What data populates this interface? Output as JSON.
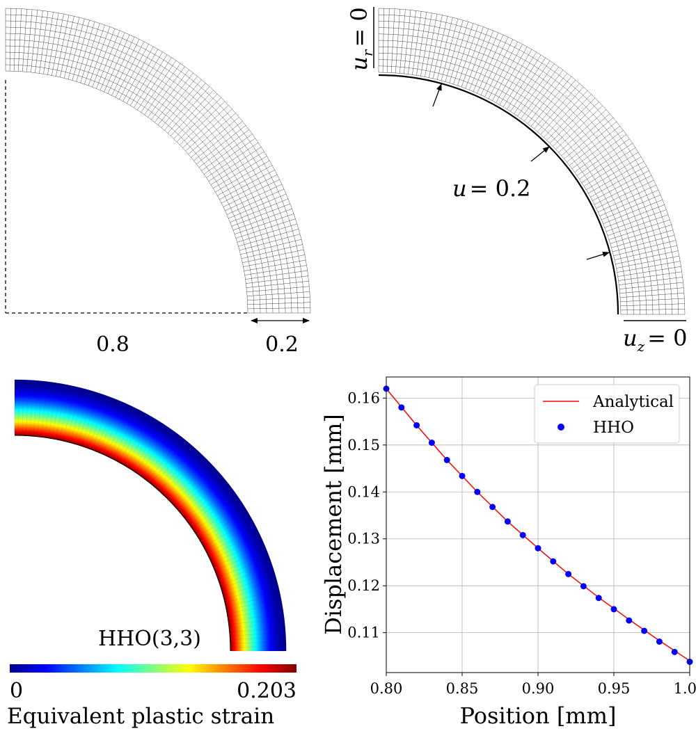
{
  "panels": {
    "mesh_dimensions": {
      "inner_label": "0.8",
      "thickness_label": "0.2"
    },
    "boundary_conditions": {
      "top_bc_var": "u",
      "top_bc_sub": "r",
      "top_bc_eq": "= 0",
      "load_var": "u",
      "load_eq": "= 0.2",
      "bottom_bc_var": "u",
      "bottom_bc_sub": "z",
      "bottom_bc_eq": "= 0"
    },
    "strain_field": {
      "method_label": "HHO(3,3)",
      "colorbar_min": "0",
      "colorbar_max": "0.203",
      "colorbar_title": "Equivalent plastic strain"
    }
  },
  "chart_data": {
    "type": "line",
    "xlabel": "Position [mm]",
    "ylabel": "Displacement [mm]",
    "xlim": [
      0.8,
      1.0
    ],
    "ylim": [
      0.1015,
      0.1645
    ],
    "xticks": [
      "0.80",
      "0.85",
      "0.90",
      "0.95",
      "1.00"
    ],
    "yticks": [
      "0.11",
      "0.12",
      "0.13",
      "0.14",
      "0.15",
      "0.16"
    ],
    "grid": true,
    "legend": "top-right",
    "series": [
      {
        "name": "Analytical",
        "style": "line",
        "color": "#ff0000",
        "x": [
          0.8,
          0.82,
          0.84,
          0.86,
          0.88,
          0.9,
          0.92,
          0.94,
          0.96,
          0.98,
          1.0
        ],
        "y": [
          0.162,
          0.1542,
          0.1468,
          0.14,
          0.1337,
          0.128,
          0.1225,
          0.1175,
          0.1128,
          0.1083,
          0.104
        ]
      },
      {
        "name": "HHO",
        "style": "scatter",
        "color": "#0000ff",
        "x": [
          0.8,
          0.81,
          0.82,
          0.83,
          0.84,
          0.85,
          0.86,
          0.87,
          0.88,
          0.89,
          0.9,
          0.91,
          0.92,
          0.93,
          0.94,
          0.95,
          0.96,
          0.97,
          0.98,
          0.99,
          1.0
        ],
        "y": [
          0.162,
          0.158,
          0.1542,
          0.1505,
          0.1468,
          0.1434,
          0.14,
          0.1368,
          0.1337,
          0.1308,
          0.128,
          0.1252,
          0.1225,
          0.1199,
          0.1174,
          0.115,
          0.1126,
          0.1104,
          0.1081,
          0.1059,
          0.1038
        ]
      }
    ]
  }
}
